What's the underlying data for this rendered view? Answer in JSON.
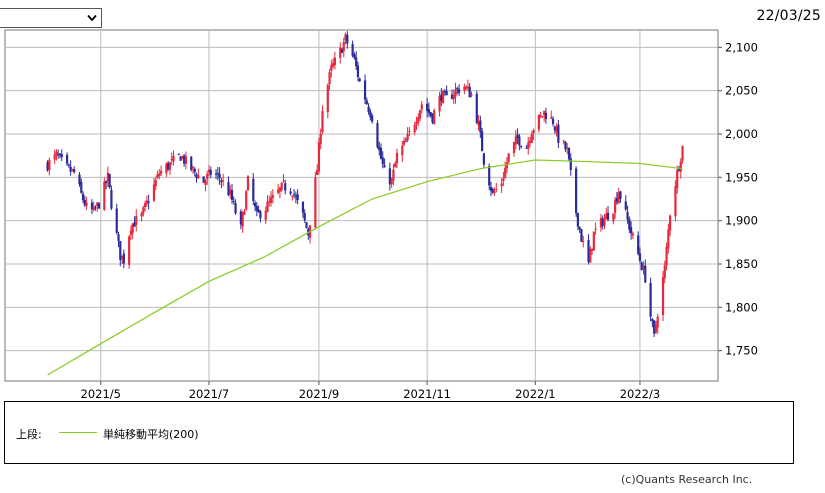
{
  "header": {
    "date": "22/03/25",
    "period_select": ""
  },
  "legend": {
    "section_label": "上段:",
    "ma_label": "単純移動平均(200)"
  },
  "credit": "(c)Quants Research Inc.",
  "colors": {
    "up": "#e8283c",
    "down": "#2a2a9a",
    "ma": "#88cc22",
    "grid": "#bbbbbb"
  },
  "chart_data": {
    "type": "candlestick",
    "title": "",
    "xlabel": "",
    "ylabel": "",
    "x_tick_labels": [
      "2021/5",
      "2021/7",
      "2021/9",
      "2021/11",
      "2022/1",
      "2022/3"
    ],
    "y_ticks": [
      1750,
      1800,
      1850,
      1900,
      1950,
      2000,
      2050,
      2100
    ],
    "y_tick_labels": [
      "1,750",
      "1,800",
      "1,850",
      "1,900",
      "1,950",
      "2,000",
      "2,050",
      "2,100"
    ],
    "ylim": [
      1715,
      2120
    ],
    "grid": true,
    "close_anchors": [
      [
        "2021-04-01",
        1965
      ],
      [
        "2021-04-06",
        1975
      ],
      [
        "2021-04-12",
        1960
      ],
      [
        "2021-04-16",
        1955
      ],
      [
        "2021-04-20",
        1930
      ],
      [
        "2021-04-23",
        1915
      ],
      [
        "2021-04-27",
        1910
      ],
      [
        "2021-04-30",
        1920
      ],
      [
        "2021-05-05",
        1950
      ],
      [
        "2021-05-08",
        1905
      ],
      [
        "2021-05-12",
        1860
      ],
      [
        "2021-05-14",
        1855
      ],
      [
        "2021-05-18",
        1895
      ],
      [
        "2021-05-24",
        1905
      ],
      [
        "2021-05-28",
        1925
      ],
      [
        "2021-06-03",
        1955
      ],
      [
        "2021-06-09",
        1965
      ],
      [
        "2021-06-15",
        1975
      ],
      [
        "2021-06-21",
        1960
      ],
      [
        "2021-06-28",
        1945
      ],
      [
        "2021-07-02",
        1955
      ],
      [
        "2021-07-07",
        1950
      ],
      [
        "2021-07-13",
        1930
      ],
      [
        "2021-07-19",
        1890
      ],
      [
        "2021-07-23",
        1945
      ],
      [
        "2021-07-28",
        1905
      ],
      [
        "2021-08-02",
        1915
      ],
      [
        "2021-08-06",
        1925
      ],
      [
        "2021-08-12",
        1940
      ],
      [
        "2021-08-17",
        1935
      ],
      [
        "2021-08-23",
        1905
      ],
      [
        "2021-08-26",
        1885
      ],
      [
        "2021-08-31",
        1960
      ],
      [
        "2021-09-03",
        2030
      ],
      [
        "2021-09-08",
        2075
      ],
      [
        "2021-09-13",
        2095
      ],
      [
        "2021-09-16",
        2110
      ],
      [
        "2021-09-21",
        2085
      ],
      [
        "2021-09-24",
        2060
      ],
      [
        "2021-09-29",
        2030
      ],
      [
        "2021-10-01",
        2020
      ],
      [
        "2021-10-05",
        1980
      ],
      [
        "2021-10-08",
        1955
      ],
      [
        "2021-10-12",
        1945
      ],
      [
        "2021-10-15",
        1975
      ],
      [
        "2021-10-20",
        1990
      ],
      [
        "2021-10-26",
        2020
      ],
      [
        "2021-10-29",
        2035
      ],
      [
        "2021-11-04",
        2020
      ],
      [
        "2021-11-09",
        2045
      ],
      [
        "2021-11-12",
        2040
      ],
      [
        "2021-11-17",
        2050
      ],
      [
        "2021-11-22",
        2055
      ],
      [
        "2021-11-26",
        2045
      ],
      [
        "2021-11-30",
        2010
      ],
      [
        "2021-12-03",
        1970
      ],
      [
        "2021-12-08",
        1930
      ],
      [
        "2021-12-13",
        1945
      ],
      [
        "2021-12-17",
        1975
      ],
      [
        "2021-12-22",
        1995
      ],
      [
        "2021-12-27",
        1985
      ],
      [
        "2021-12-30",
        2005
      ],
      [
        "2022-01-06",
        2025
      ],
      [
        "2022-01-11",
        2015
      ],
      [
        "2022-01-14",
        1995
      ],
      [
        "2022-01-19",
        1980
      ],
      [
        "2022-01-24",
        1910
      ],
      [
        "2022-01-27",
        1880
      ],
      [
        "2022-01-31",
        1850
      ],
      [
        "2022-02-03",
        1885
      ],
      [
        "2022-02-08",
        1900
      ],
      [
        "2022-02-14",
        1915
      ],
      [
        "2022-02-17",
        1935
      ],
      [
        "2022-02-22",
        1900
      ],
      [
        "2022-02-25",
        1880
      ],
      [
        "2022-03-01",
        1855
      ],
      [
        "2022-03-04",
        1835
      ],
      [
        "2022-03-07",
        1790
      ],
      [
        "2022-03-09",
        1765
      ],
      [
        "2022-03-11",
        1795
      ],
      [
        "2022-03-15",
        1845
      ],
      [
        "2022-03-18",
        1910
      ],
      [
        "2022-03-22",
        1955
      ],
      [
        "2022-03-25",
        1985
      ]
    ],
    "ma200": [
      [
        "2021-04-01",
        1722
      ],
      [
        "2021-05-01",
        1758
      ],
      [
        "2021-06-01",
        1795
      ],
      [
        "2021-07-01",
        1830
      ],
      [
        "2021-08-01",
        1858
      ],
      [
        "2021-09-01",
        1893
      ],
      [
        "2021-10-01",
        1925
      ],
      [
        "2021-11-01",
        1945
      ],
      [
        "2021-12-01",
        1960
      ],
      [
        "2022-01-01",
        1970
      ],
      [
        "2022-02-01",
        1968
      ],
      [
        "2022-03-01",
        1966
      ],
      [
        "2022-03-25",
        1960
      ]
    ]
  }
}
